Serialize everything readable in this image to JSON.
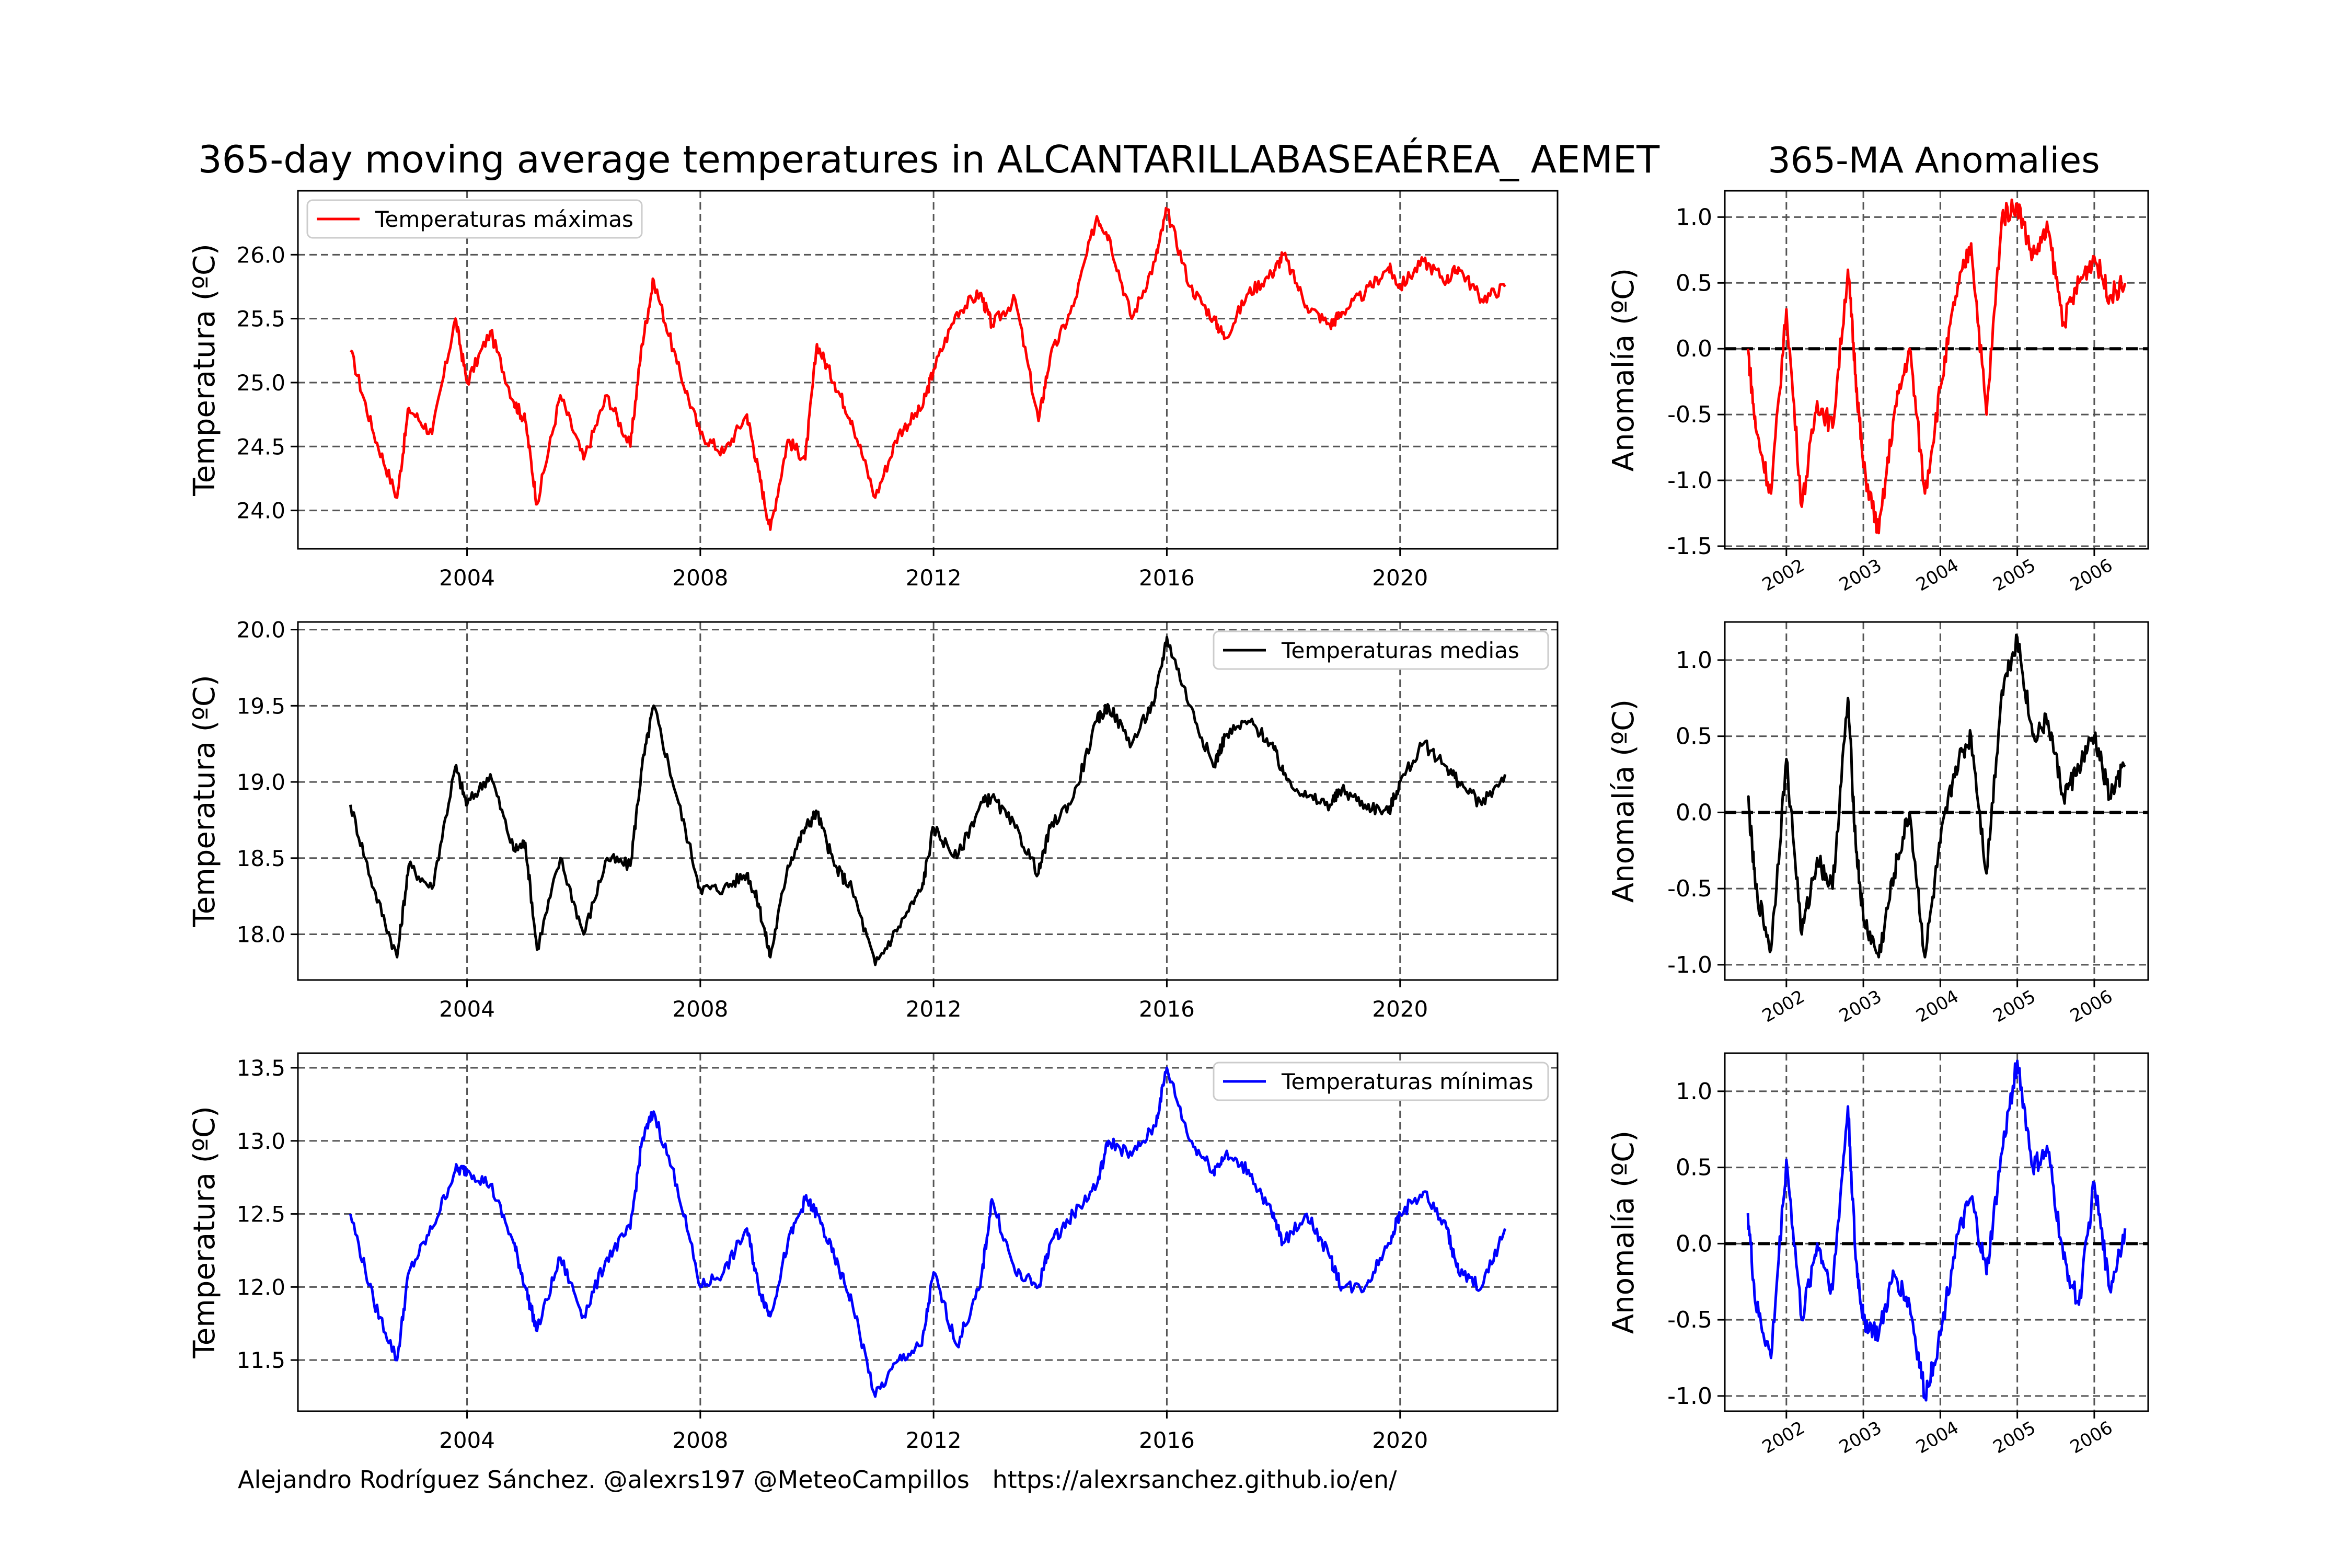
{
  "title": "365-day moving average temperatures in ALCANTARILLABASEAÉREA_ AEMET",
  "anomaly_title": "365-MA Anomalies",
  "credit": "Alejandro Rodríguez Sánchez. @alexrs197 @MeteoCampillos   https://alexrsanchez.github.io/en/",
  "colors": {
    "max": "#ff0000",
    "mean": "#000000",
    "min": "#0000ff",
    "grid": "#555555",
    "background": "#ffffff"
  },
  "chart_data": [
    {
      "type": "line",
      "panel": "main-max",
      "title": "",
      "xlabel": "",
      "ylabel": "Temperatura (ºC)",
      "xlim": [
        2001.1,
        2022.7
      ],
      "ylim": [
        23.7,
        26.5
      ],
      "xticks": [
        "2004",
        "2008",
        "2012",
        "2016",
        "2020"
      ],
      "yticks": [
        "24.0",
        "24.5",
        "25.0",
        "25.5",
        "26.0"
      ],
      "grid": true,
      "legend": "top-left",
      "series": [
        {
          "name": "Temperaturas máximas",
          "color": "#ff0000",
          "x": [
            2002.0,
            2002.4,
            2002.8,
            2003.0,
            2003.4,
            2003.8,
            2004.0,
            2004.4,
            2004.8,
            2005.0,
            2005.2,
            2005.6,
            2006.0,
            2006.4,
            2006.8,
            2007.0,
            2007.2,
            2007.6,
            2008.0,
            2008.4,
            2008.8,
            2009.0,
            2009.2,
            2009.5,
            2009.8,
            2010.0,
            2010.3,
            2010.6,
            2011.0,
            2011.4,
            2011.8,
            2012.0,
            2012.4,
            2012.8,
            2013.0,
            2013.4,
            2013.8,
            2014.0,
            2014.4,
            2014.8,
            2015.0,
            2015.4,
            2015.8,
            2016.0,
            2016.4,
            2016.8,
            2017.0,
            2017.4,
            2017.8,
            2018.0,
            2018.4,
            2018.8,
            2019.0,
            2019.4,
            2019.8,
            2020.0,
            2020.4,
            2020.8,
            2021.0,
            2021.4,
            2021.8
          ],
          "y": [
            25.25,
            24.6,
            24.1,
            24.8,
            24.6,
            25.5,
            25.0,
            25.4,
            24.85,
            24.7,
            24.05,
            24.9,
            24.4,
            24.9,
            24.5,
            25.3,
            25.8,
            25.15,
            24.6,
            24.45,
            24.75,
            24.3,
            23.85,
            24.55,
            24.4,
            25.3,
            25.0,
            24.7,
            24.1,
            24.6,
            24.8,
            25.1,
            25.55,
            25.7,
            25.45,
            25.65,
            24.7,
            25.2,
            25.6,
            26.3,
            26.15,
            25.5,
            25.95,
            26.35,
            25.75,
            25.5,
            25.35,
            25.7,
            25.85,
            26.0,
            25.6,
            25.45,
            25.55,
            25.7,
            25.9,
            25.75,
            25.95,
            25.8,
            25.9,
            25.65,
            25.75
          ]
        }
      ]
    },
    {
      "type": "line",
      "panel": "main-mean",
      "title": "",
      "xlabel": "",
      "ylabel": "Temperatura (ºC)",
      "xlim": [
        2001.1,
        2022.7
      ],
      "ylim": [
        17.7,
        20.05
      ],
      "xticks": [
        "2004",
        "2008",
        "2012",
        "2016",
        "2020"
      ],
      "yticks": [
        "18.0",
        "18.5",
        "19.0",
        "19.5",
        "20.0"
      ],
      "grid": true,
      "legend": "top-right",
      "series": [
        {
          "name": "Temperaturas medias",
          "color": "#000000",
          "x": [
            2002.0,
            2002.4,
            2002.8,
            2003.0,
            2003.4,
            2003.8,
            2004.0,
            2004.4,
            2004.8,
            2005.0,
            2005.2,
            2005.6,
            2006.0,
            2006.4,
            2006.8,
            2007.0,
            2007.2,
            2007.6,
            2008.0,
            2008.4,
            2008.8,
            2009.0,
            2009.2,
            2009.5,
            2009.8,
            2010.0,
            2010.3,
            2010.6,
            2011.0,
            2011.4,
            2011.8,
            2012.0,
            2012.4,
            2012.8,
            2013.0,
            2013.4,
            2013.8,
            2014.0,
            2014.4,
            2014.8,
            2015.0,
            2015.4,
            2015.8,
            2016.0,
            2016.4,
            2016.8,
            2017.0,
            2017.4,
            2017.8,
            2018.0,
            2018.4,
            2018.8,
            2019.0,
            2019.4,
            2019.8,
            2020.0,
            2020.4,
            2020.8,
            2021.0,
            2021.4,
            2021.8
          ],
          "y": [
            18.85,
            18.3,
            17.85,
            18.45,
            18.3,
            19.1,
            18.85,
            19.05,
            18.55,
            18.6,
            17.9,
            18.5,
            18.0,
            18.5,
            18.45,
            19.1,
            19.5,
            18.9,
            18.3,
            18.3,
            18.4,
            18.2,
            17.85,
            18.45,
            18.7,
            18.8,
            18.45,
            18.3,
            17.8,
            18.05,
            18.3,
            18.7,
            18.5,
            18.85,
            18.9,
            18.7,
            18.4,
            18.7,
            18.9,
            19.4,
            19.5,
            19.25,
            19.55,
            19.95,
            19.5,
            19.1,
            19.3,
            19.4,
            19.25,
            19.05,
            18.9,
            18.85,
            18.95,
            18.85,
            18.8,
            19.0,
            19.25,
            19.1,
            19.0,
            18.85,
            19.05
          ]
        }
      ]
    },
    {
      "type": "line",
      "panel": "main-min",
      "title": "",
      "xlabel": "",
      "ylabel": "Temperatura (ºC)",
      "xlim": [
        2001.1,
        2022.7
      ],
      "ylim": [
        11.15,
        13.6
      ],
      "xticks": [
        "2004",
        "2008",
        "2012",
        "2016",
        "2020"
      ],
      "yticks": [
        "11.5",
        "12.0",
        "12.5",
        "13.0",
        "13.5"
      ],
      "grid": true,
      "legend": "top-right",
      "series": [
        {
          "name": "Temperaturas mínimas",
          "color": "#0000ff",
          "x": [
            2002.0,
            2002.4,
            2002.8,
            2003.0,
            2003.4,
            2003.8,
            2004.0,
            2004.4,
            2004.8,
            2005.0,
            2005.2,
            2005.6,
            2006.0,
            2006.4,
            2006.8,
            2007.0,
            2007.2,
            2007.6,
            2008.0,
            2008.4,
            2008.8,
            2009.0,
            2009.2,
            2009.5,
            2009.8,
            2010.0,
            2010.3,
            2010.6,
            2011.0,
            2011.4,
            2011.8,
            2012.0,
            2012.4,
            2012.8,
            2013.0,
            2013.4,
            2013.8,
            2014.0,
            2014.4,
            2014.8,
            2015.0,
            2015.4,
            2015.8,
            2016.0,
            2016.4,
            2016.8,
            2017.0,
            2017.4,
            2017.8,
            2018.0,
            2018.4,
            2018.8,
            2019.0,
            2019.4,
            2019.8,
            2020.0,
            2020.4,
            2020.8,
            2021.0,
            2021.4,
            2021.8
          ],
          "y": [
            12.5,
            11.9,
            11.5,
            12.1,
            12.4,
            12.8,
            12.8,
            12.7,
            12.3,
            12.0,
            11.7,
            12.2,
            11.8,
            12.2,
            12.4,
            13.0,
            13.2,
            12.7,
            12.0,
            12.1,
            12.4,
            12.0,
            11.8,
            12.3,
            12.6,
            12.5,
            12.2,
            11.9,
            11.25,
            11.5,
            11.6,
            12.1,
            11.6,
            12.0,
            12.6,
            12.1,
            12.0,
            12.3,
            12.5,
            12.7,
            13.0,
            12.9,
            13.1,
            13.5,
            13.0,
            12.8,
            12.9,
            12.8,
            12.5,
            12.3,
            12.5,
            12.2,
            12.0,
            12.0,
            12.3,
            12.5,
            12.65,
            12.4,
            12.1,
            12.0,
            12.4
          ]
        }
      ]
    },
    {
      "type": "line",
      "panel": "anom-max",
      "title": "",
      "ylabel": "Anomalía (ºC)",
      "xlim": [
        2001.2,
        2006.7
      ],
      "ylim": [
        -1.52,
        1.2
      ],
      "xticks": [
        "2002",
        "2003",
        "2004",
        "2005",
        "2006"
      ],
      "yticks": [
        "-1.5",
        "-1.0",
        "-0.5",
        "0.0",
        "0.5",
        "1.0"
      ],
      "baseline": 0,
      "grid": true,
      "series": [
        {
          "color": "#ff0000",
          "x": [
            2001.5,
            2001.6,
            2001.8,
            2002.0,
            2002.2,
            2002.4,
            2002.6,
            2002.8,
            2002.9,
            2003.0,
            2003.2,
            2003.4,
            2003.6,
            2003.8,
            2004.0,
            2004.2,
            2004.4,
            2004.6,
            2004.8,
            2005.0,
            2005.2,
            2005.4,
            2005.6,
            2005.8,
            2006.0,
            2006.2,
            2006.4
          ],
          "y": [
            0.0,
            -0.6,
            -1.1,
            0.3,
            -1.2,
            -0.4,
            -0.6,
            0.6,
            -0.2,
            -0.9,
            -1.4,
            -0.5,
            0.0,
            -1.1,
            -0.3,
            0.4,
            0.8,
            -0.5,
            1.0,
            1.1,
            0.7,
            0.9,
            0.2,
            0.5,
            0.7,
            0.4,
            0.5
          ]
        }
      ]
    },
    {
      "type": "line",
      "panel": "anom-mean",
      "title": "",
      "ylabel": "Anomalía (ºC)",
      "xlim": [
        2001.2,
        2006.7
      ],
      "ylim": [
        -1.1,
        1.25
      ],
      "xticks": [
        "2002",
        "2003",
        "2004",
        "2005",
        "2006"
      ],
      "yticks": [
        "-1.0",
        "-0.5",
        "0.0",
        "0.5",
        "1.0"
      ],
      "baseline": 0,
      "grid": true,
      "series": [
        {
          "color": "#000000",
          "x": [
            2001.5,
            2001.6,
            2001.8,
            2002.0,
            2002.2,
            2002.4,
            2002.6,
            2002.8,
            2002.9,
            2003.0,
            2003.2,
            2003.4,
            2003.6,
            2003.8,
            2004.0,
            2004.2,
            2004.4,
            2004.6,
            2004.8,
            2005.0,
            2005.2,
            2005.4,
            2005.6,
            2005.8,
            2006.0,
            2006.2,
            2006.4
          ],
          "y": [
            0.1,
            -0.5,
            -0.9,
            0.35,
            -0.8,
            -0.3,
            -0.5,
            0.75,
            -0.2,
            -0.7,
            -0.95,
            -0.4,
            0.0,
            -0.95,
            -0.2,
            0.3,
            0.5,
            -0.4,
            0.8,
            1.15,
            0.5,
            0.6,
            0.1,
            0.3,
            0.5,
            0.1,
            0.3
          ]
        }
      ]
    },
    {
      "type": "line",
      "panel": "anom-min",
      "title": "",
      "ylabel": "Anomalía (ºC)",
      "xlim": [
        2001.2,
        2006.7
      ],
      "ylim": [
        -1.1,
        1.25
      ],
      "xticks": [
        "2002",
        "2003",
        "2004",
        "2005",
        "2006"
      ],
      "yticks": [
        "-1.0",
        "-0.5",
        "0.0",
        "0.5",
        "1.0"
      ],
      "baseline": 0,
      "grid": true,
      "series": [
        {
          "color": "#0000ff",
          "x": [
            2001.5,
            2001.6,
            2001.8,
            2002.0,
            2002.2,
            2002.4,
            2002.6,
            2002.8,
            2002.9,
            2003.0,
            2003.2,
            2003.4,
            2003.6,
            2003.8,
            2004.0,
            2004.2,
            2004.4,
            2004.6,
            2004.8,
            2005.0,
            2005.2,
            2005.4,
            2005.6,
            2005.8,
            2006.0,
            2006.2,
            2006.4
          ],
          "y": [
            0.2,
            -0.4,
            -0.75,
            0.55,
            -0.5,
            0.0,
            -0.3,
            0.9,
            -0.1,
            -0.5,
            -0.6,
            -0.2,
            -0.4,
            -1.0,
            -0.6,
            0.0,
            0.3,
            -0.2,
            0.6,
            1.2,
            0.5,
            0.6,
            -0.1,
            -0.4,
            0.4,
            -0.3,
            0.1
          ]
        }
      ]
    }
  ]
}
